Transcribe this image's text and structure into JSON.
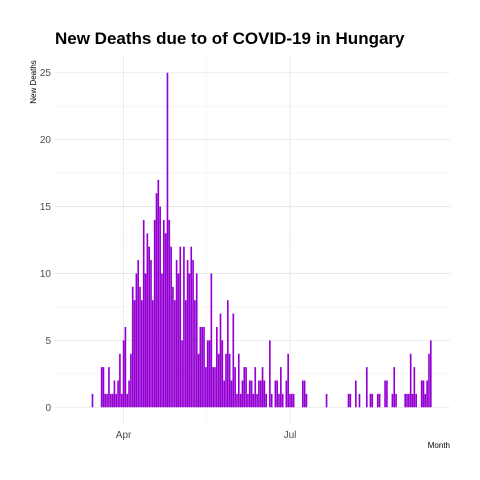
{
  "chart_data": {
    "type": "bar",
    "title": "New Deaths due to of COVID-19 in Hungary",
    "x_label": "Month",
    "y_label": "New Deaths",
    "color": "#9400D3",
    "grid": true,
    "x": [
      0,
      1,
      2,
      3,
      4,
      5,
      6,
      7,
      8,
      9,
      10,
      11,
      12,
      13,
      14,
      15,
      16,
      17,
      18,
      19,
      20,
      21,
      22,
      23,
      24,
      25,
      26,
      27,
      28,
      29,
      30,
      31,
      32,
      33,
      34,
      35,
      36,
      37,
      38,
      39,
      40,
      41,
      42,
      43,
      44,
      45,
      46,
      47,
      48,
      49,
      50,
      51,
      52,
      53,
      54,
      55,
      56,
      57,
      58,
      59,
      60,
      61,
      62,
      63,
      64,
      65,
      66,
      67,
      68,
      69,
      70,
      71,
      72,
      73,
      74,
      75,
      76,
      77,
      78,
      79,
      80,
      81,
      82,
      83,
      84,
      85,
      86,
      87,
      88,
      89,
      90,
      91,
      92,
      93,
      94,
      95,
      96,
      97,
      98,
      99,
      100,
      101,
      102,
      103,
      104,
      105,
      106,
      107,
      108,
      109,
      110,
      111,
      112,
      113,
      114,
      115,
      116,
      117,
      118,
      119,
      120,
      121,
      122,
      123,
      124,
      125,
      126,
      127,
      128,
      129,
      130,
      131,
      132,
      133,
      134,
      135,
      136,
      137,
      138,
      139,
      140,
      141,
      142,
      143,
      144,
      145,
      146,
      147,
      148,
      149,
      150,
      151,
      152,
      153,
      154,
      155,
      156,
      157,
      158,
      159,
      160,
      161,
      162,
      163,
      164,
      165,
      166,
      167,
      168,
      169,
      170,
      171,
      172,
      173,
      174,
      175,
      176,
      177,
      178,
      179,
      180,
      181,
      182,
      183,
      184,
      185
    ],
    "values": [
      1,
      0,
      0,
      0,
      0,
      3,
      3,
      1,
      1,
      3,
      1,
      1,
      2,
      1,
      2,
      4,
      1,
      5,
      6,
      1,
      2,
      4,
      9,
      8,
      10,
      11,
      9,
      8,
      14,
      10,
      13,
      12,
      11,
      8,
      14,
      16,
      17,
      15,
      10,
      14,
      13,
      25,
      14,
      12,
      9,
      8,
      11,
      10,
      12,
      5,
      12,
      8,
      11,
      10,
      12,
      11,
      8,
      10,
      4,
      6,
      6,
      6,
      3,
      5,
      5,
      10,
      3,
      3,
      6,
      4,
      7,
      5,
      2,
      4,
      8,
      4,
      2,
      7,
      3,
      1,
      4,
      1,
      2,
      3,
      3,
      1,
      2,
      2,
      1,
      3,
      1,
      2,
      2,
      3,
      2,
      1,
      0,
      5,
      1,
      0,
      2,
      2,
      1,
      3,
      1,
      0,
      2,
      4,
      1,
      1,
      1,
      0,
      0,
      0,
      0,
      2,
      2,
      1,
      0,
      0,
      0,
      0,
      0,
      0,
      0,
      0,
      0,
      0,
      1,
      0,
      0,
      0,
      0,
      0,
      0,
      0,
      0,
      0,
      0,
      0,
      1,
      1,
      0,
      0,
      2,
      0,
      1,
      0,
      0,
      0,
      3,
      0,
      1,
      1,
      0,
      0,
      1,
      1,
      0,
      0,
      2,
      2,
      0,
      0,
      1,
      3,
      1,
      0,
      0,
      0,
      0,
      1,
      1,
      1,
      4,
      1,
      3,
      1,
      0,
      0,
      2,
      2,
      1,
      2,
      4,
      5
    ],
    "xlim": [
      -20.5,
      195.5
    ],
    "xticks": [
      {
        "value": 17,
        "label": "Apr"
      },
      {
        "value": 108,
        "label": "Jul"
      }
    ],
    "ylim": [
      -1.25,
      26.25
    ],
    "yticks": [
      0,
      5,
      10,
      15,
      20,
      25
    ]
  }
}
